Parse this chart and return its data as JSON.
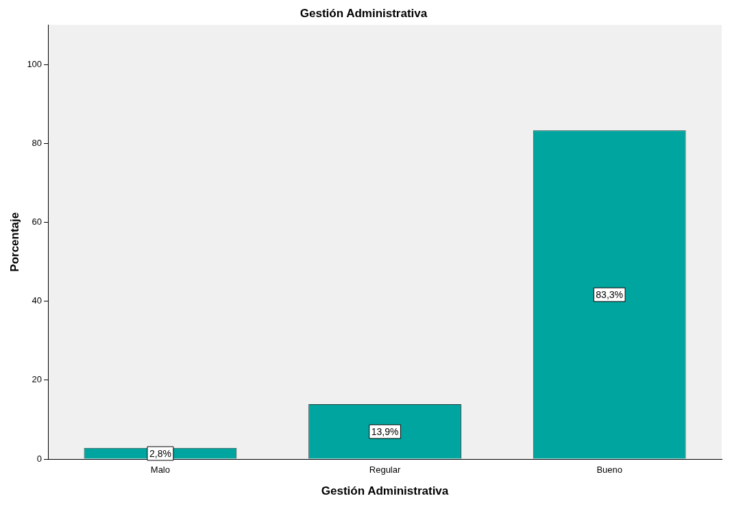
{
  "chart_data": {
    "type": "bar",
    "title": "Gestión Administrativa",
    "xlabel": "Gestión Administrativa",
    "ylabel": "Porcentaje",
    "categories": [
      "Malo",
      "Regular",
      "Bueno"
    ],
    "values": [
      2.8,
      13.9,
      83.3
    ],
    "value_labels": [
      "2,8%",
      "13,9%",
      "83,3%"
    ],
    "color": "#00a59f",
    "ylim": [
      0,
      110
    ],
    "yticks": [
      0,
      20,
      40,
      60,
      80,
      100
    ],
    "grid": false,
    "legend": false
  }
}
